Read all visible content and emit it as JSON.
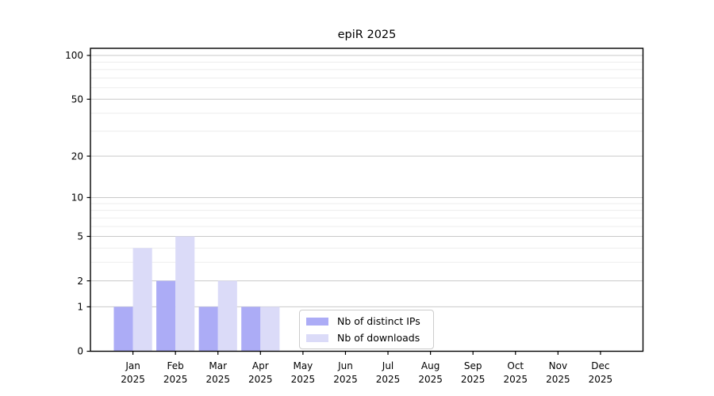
{
  "chart_data": {
    "type": "bar",
    "title": "epiR 2025",
    "categories": [
      "Jan",
      "Feb",
      "Mar",
      "Apr",
      "May",
      "Jun",
      "Jul",
      "Aug",
      "Sep",
      "Oct",
      "Nov",
      "Dec"
    ],
    "category_year": "2025",
    "series": [
      {
        "name": "Nb of distinct IPs",
        "color": "#acacf6",
        "values": [
          1,
          2,
          1,
          1,
          0,
          0,
          0,
          0,
          0,
          0,
          0,
          0
        ]
      },
      {
        "name": "Nb of downloads",
        "color": "#dbdbf8",
        "values": [
          4,
          5,
          2,
          1,
          0,
          0,
          0,
          0,
          0,
          0,
          0,
          0
        ]
      }
    ],
    "yscale": "log1p",
    "ylim": [
      0,
      100
    ],
    "yticks": [
      0,
      1,
      2,
      5,
      10,
      20,
      50,
      100
    ],
    "yticks_minor": [
      3,
      4,
      6,
      7,
      8,
      9,
      30,
      40,
      60,
      70,
      80,
      90
    ],
    "grid": "horizontal",
    "legend_position": "inside-bottom-center-left",
    "colors": {
      "grid_major": "#c9c9c9",
      "grid_minor": "#ededed",
      "axis": "#000000",
      "tick_label": "#000000",
      "background": "#ffffff"
    }
  }
}
